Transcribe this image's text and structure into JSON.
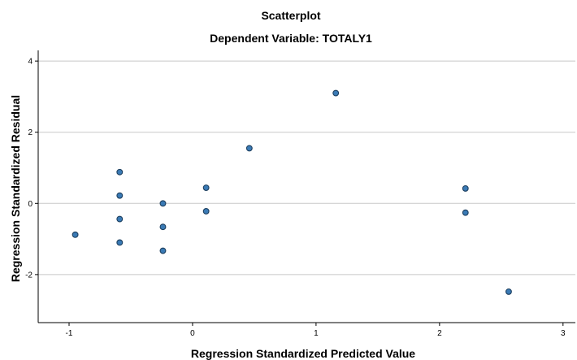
{
  "chart_data": {
    "type": "scatter",
    "title": "Scatterplot",
    "subtitle": "Dependent Variable: TOTALY1",
    "xlabel": "Regression Standardized Predicted Value",
    "ylabel": "Regression Standardized Residual",
    "xlim": [
      -1.25,
      3.1
    ],
    "ylim": [
      -3.35,
      4.3
    ],
    "xticks": [
      -1,
      0,
      1,
      2,
      3
    ],
    "xtick_labels": [
      "-1",
      "0",
      "1",
      "2",
      "3"
    ],
    "yticks": [
      -2,
      0,
      2,
      4
    ],
    "ytick_labels": [
      "-2",
      "0",
      "2",
      "4"
    ],
    "grid": "horizontal",
    "legend": "none",
    "colors": {
      "point_fill": "#3a7ab5",
      "point_stroke": "#1d3f5f",
      "grid": "#c8c8c8",
      "axis": "#000000"
    },
    "points": [
      {
        "x": -0.95,
        "y": -0.88
      },
      {
        "x": -0.59,
        "y": 0.88
      },
      {
        "x": -0.59,
        "y": 0.22
      },
      {
        "x": -0.59,
        "y": -0.44
      },
      {
        "x": -0.59,
        "y": -1.1
      },
      {
        "x": -0.24,
        "y": 0.0
      },
      {
        "x": -0.24,
        "y": -0.66
      },
      {
        "x": -0.24,
        "y": -1.33
      },
      {
        "x": 0.11,
        "y": 0.44
      },
      {
        "x": 0.11,
        "y": -0.22
      },
      {
        "x": 0.46,
        "y": 1.55
      },
      {
        "x": 1.16,
        "y": 3.1
      },
      {
        "x": 2.21,
        "y": 0.42
      },
      {
        "x": 2.21,
        "y": -0.26
      },
      {
        "x": 2.56,
        "y": -2.48
      }
    ]
  }
}
